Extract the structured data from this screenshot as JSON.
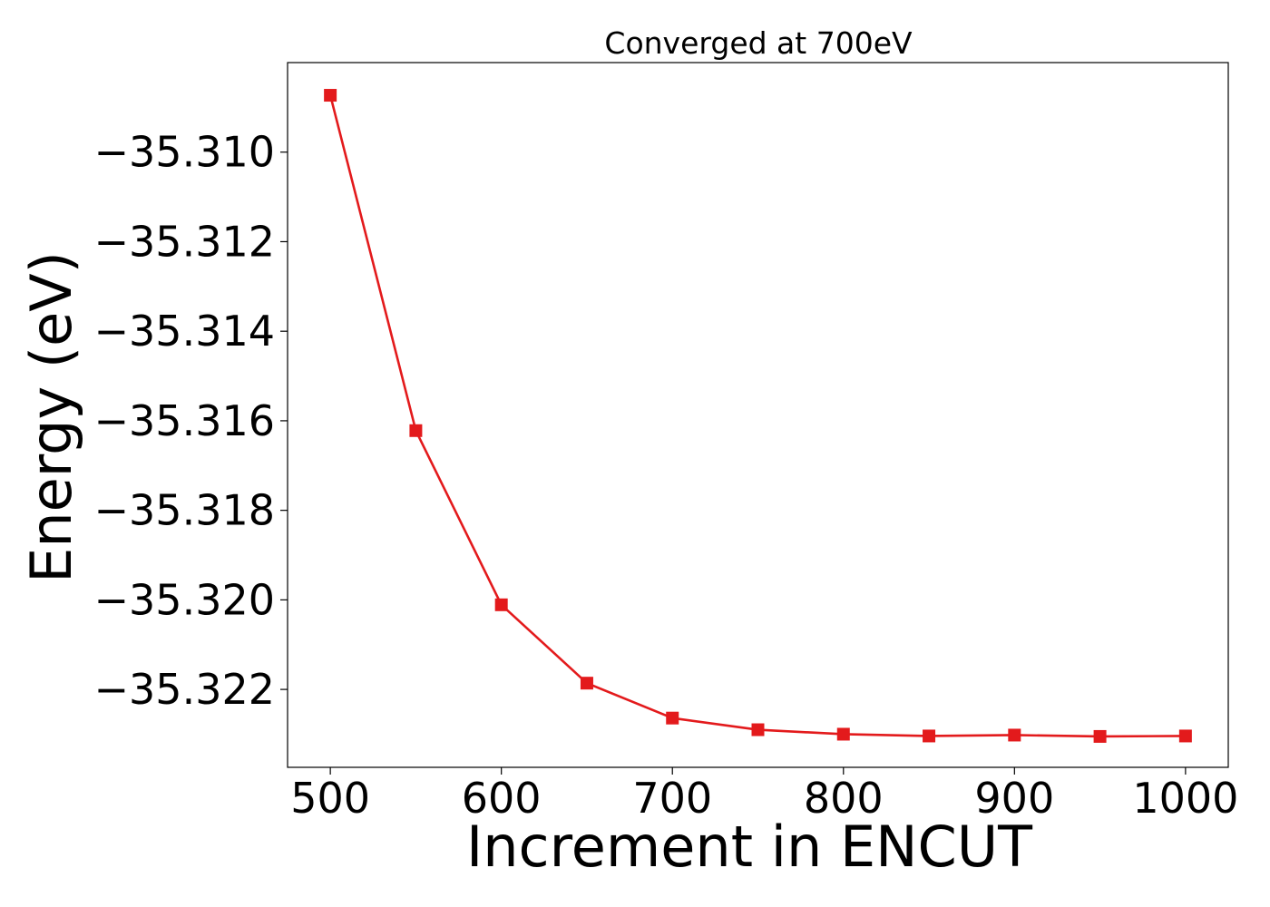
{
  "chart_data": {
    "type": "line",
    "title": "Converged at 700eV",
    "xlabel": "Increment in ENCUT",
    "ylabel": "Energy (eV)",
    "xlim": [
      475,
      1025
    ],
    "ylim": [
      -35.32374,
      -35.308
    ],
    "x_ticks": [
      500,
      600,
      700,
      800,
      900,
      1000
    ],
    "x_tick_labels": [
      "500",
      "600",
      "700",
      "800",
      "900",
      "1000"
    ],
    "y_ticks": [
      -35.31,
      -35.312,
      -35.314,
      -35.316,
      -35.318,
      -35.32,
      -35.322
    ],
    "y_tick_labels": [
      "−35.310",
      "−35.312",
      "−35.314",
      "−35.316",
      "−35.318",
      "−35.320",
      "−35.322"
    ],
    "grid": false,
    "legend": "none",
    "series": [
      {
        "color": "#e31a1c",
        "marker": "square",
        "x": [
          500,
          550,
          600,
          650,
          700,
          750,
          800,
          850,
          900,
          950,
          1000
        ],
        "y": [
          -35.30873,
          -35.31622,
          -35.32011,
          -35.32186,
          -35.32264,
          -35.3229,
          -35.323,
          -35.32304,
          -35.32302,
          -35.32305,
          -35.32304
        ]
      }
    ]
  }
}
